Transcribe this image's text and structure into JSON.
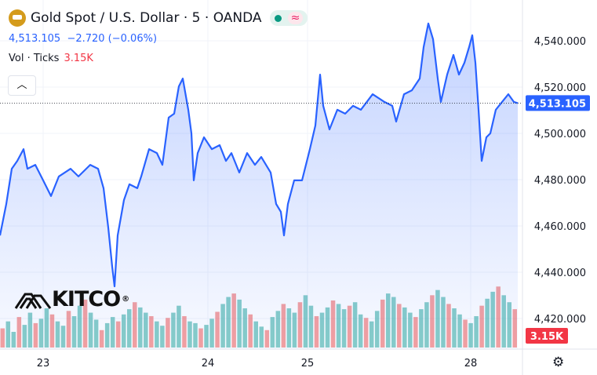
{
  "header": {
    "title": "Gold Spot / U.S. Dollar · 5 · OANDA",
    "price": "4,513.105",
    "change": "−2.720 (−0.06%)",
    "vol_label": "Vol · Ticks",
    "vol_value": "3.15K",
    "collapse_icon": "chevron-up-icon",
    "logo_text": "KITCO",
    "logo_mark": "®"
  },
  "chart_data": {
    "type": "line",
    "title": "Gold Spot / U.S. Dollar · 5 · OANDA",
    "xlabel": "",
    "ylabel": "",
    "ylim": [
      4406,
      4556
    ],
    "y_ticks": [
      4420,
      4440,
      4460,
      4480,
      4500,
      4520,
      4540
    ],
    "y_tick_labels": [
      "4,420.000",
      "4,440.000",
      "4,460.000",
      "4,480.000",
      "4,500.000",
      "4,520.000",
      "4,540.000"
    ],
    "x_ticks": [
      {
        "bar": 55,
        "label": "23"
      },
      {
        "bar": 265,
        "label": "24"
      },
      {
        "bar": 392,
        "label": "25"
      },
      {
        "bar": 600,
        "label": "28"
      }
    ],
    "x_range": [
      0,
      762
    ],
    "last_price": 4513.105,
    "last_price_label": "4,513.105",
    "last_volume_label": "3.15K",
    "colors": {
      "line": "#2962ff",
      "up": "#26a69a",
      "down": "#ef5350",
      "label": "#2962ff",
      "vol_label": "#f23645"
    },
    "series": [
      {
        "name": "Price",
        "points": [
          [
            0,
            4455.9
          ],
          [
            8,
            4469.5
          ],
          [
            15,
            4484.7
          ],
          [
            22,
            4488.1
          ],
          [
            30,
            4493.2
          ],
          [
            35,
            4484.7
          ],
          [
            45,
            4486.4
          ],
          [
            55,
            4479.7
          ],
          [
            65,
            4472.9
          ],
          [
            75,
            4481.4
          ],
          [
            90,
            4484.7
          ],
          [
            100,
            4481.4
          ],
          [
            115,
            4486.4
          ],
          [
            125,
            4484.7
          ],
          [
            132,
            4476.3
          ],
          [
            138,
            4459.3
          ],
          [
            143,
            4442.4
          ],
          [
            146,
            4433.9
          ],
          [
            150,
            4455.9
          ],
          [
            158,
            4471.2
          ],
          [
            165,
            4478.0
          ],
          [
            175,
            4476.3
          ],
          [
            180,
            4481.4
          ],
          [
            190,
            4493.2
          ],
          [
            200,
            4491.5
          ],
          [
            207,
            4486.4
          ],
          [
            215,
            4506.8
          ],
          [
            222,
            4508.5
          ],
          [
            228,
            4520.3
          ],
          [
            233,
            4523.7
          ],
          [
            240,
            4510.2
          ],
          [
            244,
            4500.0
          ],
          [
            247,
            4479.7
          ],
          [
            252,
            4491.5
          ],
          [
            260,
            4498.3
          ],
          [
            270,
            4493.2
          ],
          [
            280,
            4494.9
          ],
          [
            288,
            4488.1
          ],
          [
            295,
            4491.5
          ],
          [
            305,
            4483.1
          ],
          [
            315,
            4491.5
          ],
          [
            325,
            4486.4
          ],
          [
            333,
            4489.8
          ],
          [
            345,
            4483.1
          ],
          [
            352,
            4469.5
          ],
          [
            358,
            4466.1
          ],
          [
            362,
            4455.9
          ],
          [
            367,
            4469.5
          ],
          [
            375,
            4479.7
          ],
          [
            385,
            4479.7
          ],
          [
            395,
            4493.2
          ],
          [
            402,
            4503.4
          ],
          [
            408,
            4525.4
          ],
          [
            412,
            4511.9
          ],
          [
            420,
            4501.7
          ],
          [
            430,
            4510.2
          ],
          [
            440,
            4508.5
          ],
          [
            450,
            4511.9
          ],
          [
            460,
            4510.2
          ],
          [
            475,
            4516.9
          ],
          [
            490,
            4513.6
          ],
          [
            500,
            4511.9
          ],
          [
            505,
            4505.1
          ],
          [
            515,
            4516.9
          ],
          [
            525,
            4518.6
          ],
          [
            535,
            4523.7
          ],
          [
            540,
            4537.3
          ],
          [
            546,
            4547.5
          ],
          [
            552,
            4540.7
          ],
          [
            558,
            4523.7
          ],
          [
            562,
            4513.6
          ],
          [
            570,
            4525.4
          ],
          [
            578,
            4533.9
          ],
          [
            585,
            4525.4
          ],
          [
            592,
            4530.5
          ],
          [
            598,
            4537.3
          ],
          [
            602,
            4542.4
          ],
          [
            606,
            4530.5
          ],
          [
            610,
            4510.2
          ],
          [
            614,
            4488.1
          ],
          [
            620,
            4498.3
          ],
          [
            625,
            4500.0
          ],
          [
            632,
            4510.2
          ],
          [
            640,
            4513.6
          ],
          [
            648,
            4516.9
          ],
          [
            655,
            4513.6
          ],
          [
            660,
            4513.1
          ]
        ]
      }
    ],
    "volume": [
      22,
      30,
      18,
      35,
      26,
      40,
      28,
      33,
      45,
      38,
      30,
      25,
      42,
      36,
      48,
      55,
      40,
      32,
      20,
      28,
      35,
      30,
      38,
      44,
      52,
      46,
      40,
      36,
      30,
      25,
      34,
      40,
      48,
      36,
      30,
      28,
      22,
      26,
      33,
      41,
      50,
      58,
      62,
      55,
      45,
      38,
      30,
      24,
      20,
      35,
      42,
      50,
      45,
      40,
      52,
      60,
      48,
      36,
      40,
      46,
      54,
      50,
      44,
      48,
      52,
      38,
      34,
      30,
      42,
      55,
      62,
      58,
      50,
      46,
      40,
      35,
      44,
      52,
      60,
      66,
      58,
      50,
      45,
      38,
      32,
      28,
      36,
      48,
      56,
      64,
      70,
      60,
      52,
      44
    ]
  }
}
